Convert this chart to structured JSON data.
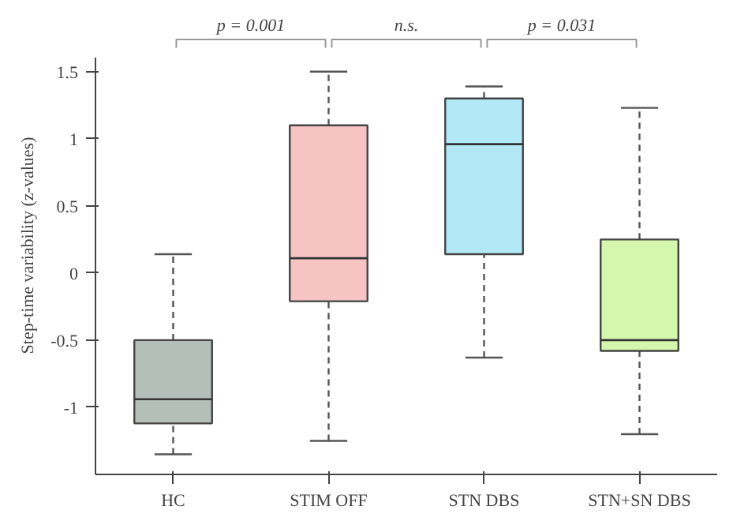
{
  "chart_data": {
    "type": "box",
    "ylabel": "Step-time variability (z-values)",
    "categories": [
      "HC",
      "STIM OFF",
      "STN DBS",
      "STN+SN DBS"
    ],
    "boxes": [
      {
        "low": -1.35,
        "q1": -1.12,
        "median": -0.94,
        "q3": -0.5,
        "high": 0.14
      },
      {
        "low": -1.25,
        "q1": -0.21,
        "median": 0.11,
        "q3": 1.1,
        "high": 1.5
      },
      {
        "low": -0.63,
        "q1": 0.14,
        "median": 0.96,
        "q3": 1.3,
        "high": 1.39
      },
      {
        "low": -1.2,
        "q1": -0.58,
        "median": -0.5,
        "q3": 0.25,
        "high": 1.23
      }
    ],
    "colors": [
      "#b4bfba",
      "#f7c4c4",
      "#b3e9f7",
      "#d5f7ad"
    ],
    "ylim": [
      -1.5,
      1.6
    ],
    "yticks": [
      -1,
      -0.5,
      0,
      0.5,
      1,
      1.5
    ],
    "grid": false,
    "annotations": [
      "p = 0.001",
      "n.s.",
      "p = 0.031"
    ]
  }
}
